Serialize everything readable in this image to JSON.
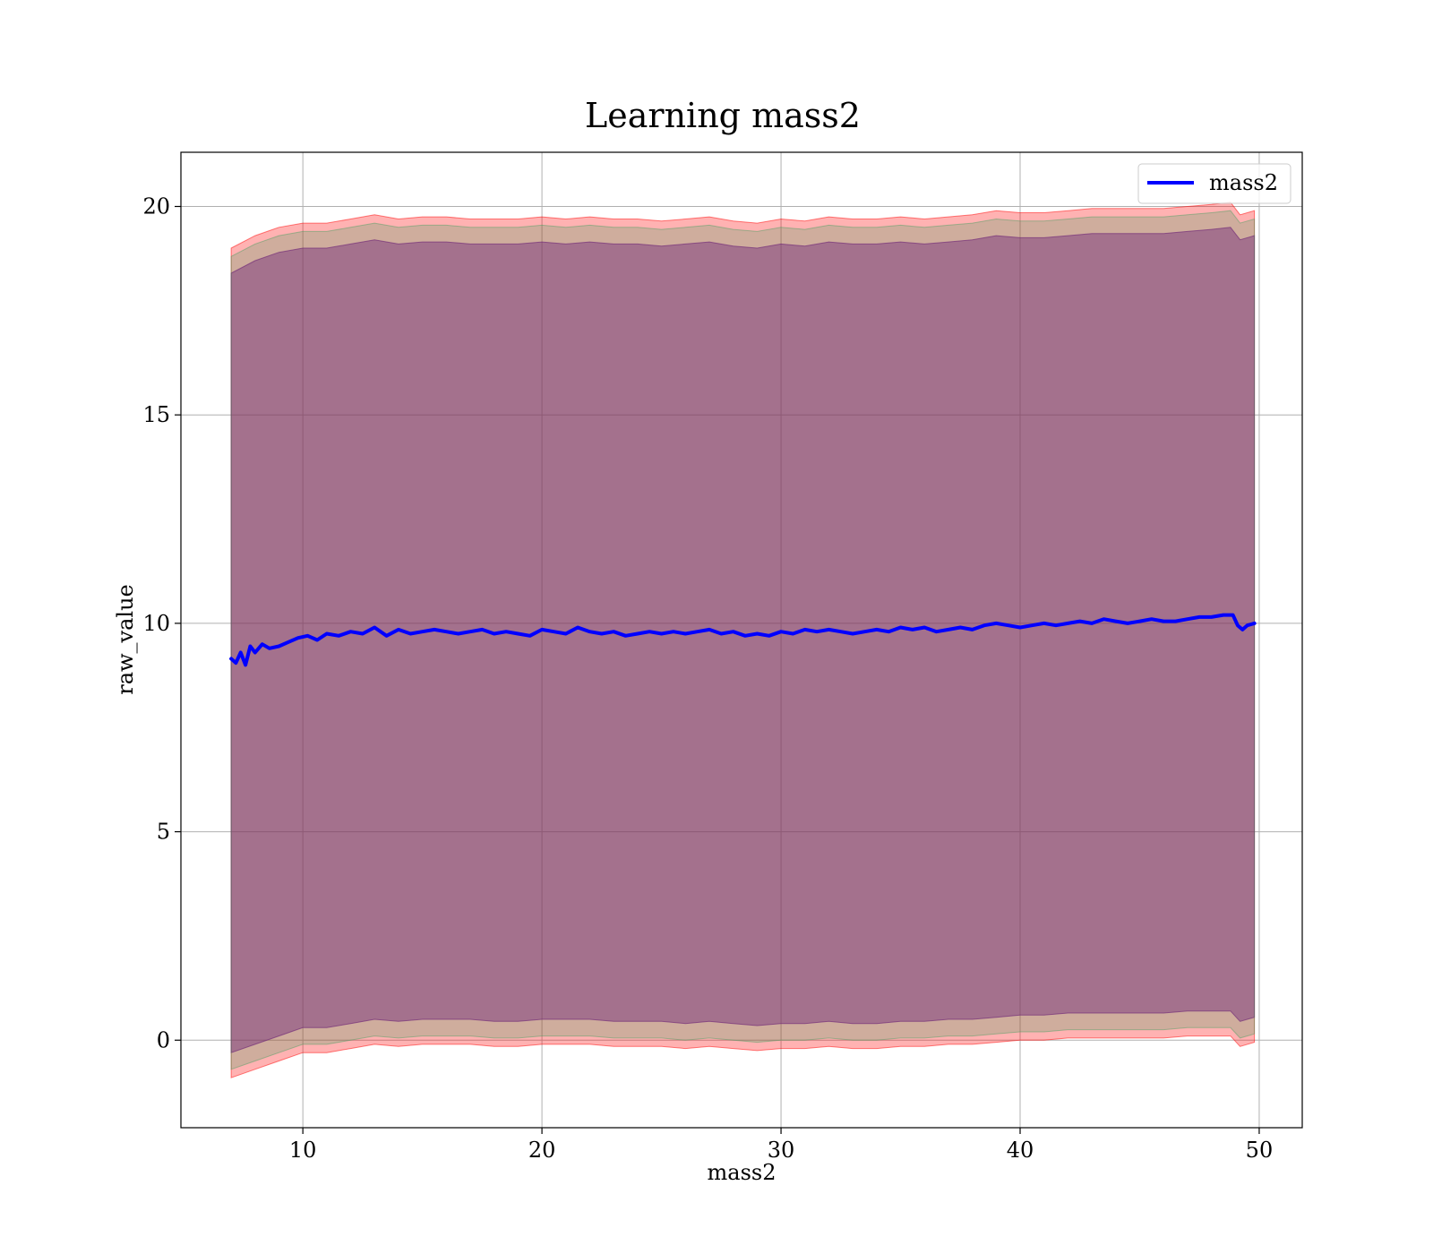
{
  "chart_data": {
    "type": "line",
    "title": "Learning mass2",
    "xlabel": "mass2",
    "ylabel": "raw_value",
    "xlim": [
      4.9,
      51.8
    ],
    "ylim": [
      -2.1,
      21.3
    ],
    "xticks": [
      10,
      20,
      30,
      40,
      50
    ],
    "yticks": [
      0,
      5,
      10,
      15,
      20
    ],
    "grid": true,
    "legend_position": "top-right",
    "series": [
      {
        "name": "mass2",
        "color": "#0000ff",
        "x": [
          7.0,
          7.2,
          7.4,
          7.6,
          7.8,
          8.0,
          8.3,
          8.6,
          9.0,
          9.4,
          9.8,
          10.2,
          10.6,
          11.0,
          11.5,
          12.0,
          12.5,
          13.0,
          13.5,
          14.0,
          14.5,
          15.0,
          15.5,
          16.0,
          16.5,
          17.0,
          17.5,
          18.0,
          18.5,
          19.0,
          19.5,
          20.0,
          20.5,
          21.0,
          21.5,
          22.0,
          22.5,
          23.0,
          23.5,
          24.0,
          24.5,
          25.0,
          25.5,
          26.0,
          26.5,
          27.0,
          27.5,
          28.0,
          28.5,
          29.0,
          29.5,
          30.0,
          30.5,
          31.0,
          31.5,
          32.0,
          32.5,
          33.0,
          33.5,
          34.0,
          34.5,
          35.0,
          35.5,
          36.0,
          36.5,
          37.0,
          37.5,
          38.0,
          38.5,
          39.0,
          39.5,
          40.0,
          40.5,
          41.0,
          41.5,
          42.0,
          42.5,
          43.0,
          43.5,
          44.0,
          44.5,
          45.0,
          45.5,
          46.0,
          46.5,
          47.0,
          47.5,
          48.0,
          48.5,
          48.9,
          49.1,
          49.3,
          49.5,
          49.8
        ],
        "y": [
          9.15,
          9.05,
          9.3,
          9.0,
          9.45,
          9.3,
          9.5,
          9.4,
          9.45,
          9.55,
          9.65,
          9.7,
          9.6,
          9.75,
          9.7,
          9.8,
          9.75,
          9.9,
          9.7,
          9.85,
          9.75,
          9.8,
          9.85,
          9.8,
          9.75,
          9.8,
          9.85,
          9.75,
          9.8,
          9.75,
          9.7,
          9.85,
          9.8,
          9.75,
          9.9,
          9.8,
          9.75,
          9.8,
          9.7,
          9.75,
          9.8,
          9.75,
          9.8,
          9.75,
          9.8,
          9.85,
          9.75,
          9.8,
          9.7,
          9.75,
          9.7,
          9.8,
          9.75,
          9.85,
          9.8,
          9.85,
          9.8,
          9.75,
          9.8,
          9.85,
          9.8,
          9.9,
          9.85,
          9.9,
          9.8,
          9.85,
          9.9,
          9.85,
          9.95,
          10.0,
          9.95,
          9.9,
          9.95,
          10.0,
          9.95,
          10.0,
          10.05,
          10.0,
          10.1,
          10.05,
          10.0,
          10.05,
          10.1,
          10.05,
          10.05,
          10.1,
          10.15,
          10.15,
          10.2,
          10.2,
          9.95,
          9.85,
          9.95,
          10.0
        ]
      }
    ],
    "bands": [
      {
        "color": "#ff0000",
        "opacity": 0.3,
        "x": [
          7.0,
          8.0,
          9.0,
          10.0,
          11.0,
          12.0,
          13.0,
          14.0,
          15.0,
          16.0,
          17.0,
          18.0,
          19.0,
          20.0,
          21.0,
          22.0,
          23.0,
          24.0,
          25.0,
          26.0,
          27.0,
          28.0,
          29.0,
          30.0,
          31.0,
          32.0,
          33.0,
          34.0,
          35.0,
          36.0,
          37.0,
          38.0,
          39.0,
          40.0,
          41.0,
          42.0,
          43.0,
          44.0,
          45.0,
          46.0,
          47.0,
          48.0,
          48.8,
          49.2,
          49.8
        ],
        "upper": [
          19.0,
          19.3,
          19.5,
          19.6,
          19.6,
          19.7,
          19.8,
          19.7,
          19.75,
          19.75,
          19.7,
          19.7,
          19.7,
          19.75,
          19.7,
          19.75,
          19.7,
          19.7,
          19.65,
          19.7,
          19.75,
          19.65,
          19.6,
          19.7,
          19.65,
          19.75,
          19.7,
          19.7,
          19.75,
          19.7,
          19.75,
          19.8,
          19.9,
          19.85,
          19.85,
          19.9,
          19.95,
          19.95,
          19.95,
          19.95,
          20.0,
          20.05,
          20.1,
          19.8,
          19.9
        ],
        "lower": [
          -0.9,
          -0.7,
          -0.5,
          -0.3,
          -0.3,
          -0.2,
          -0.1,
          -0.15,
          -0.1,
          -0.1,
          -0.1,
          -0.15,
          -0.15,
          -0.1,
          -0.1,
          -0.1,
          -0.15,
          -0.15,
          -0.15,
          -0.2,
          -0.15,
          -0.2,
          -0.25,
          -0.2,
          -0.2,
          -0.15,
          -0.2,
          -0.2,
          -0.15,
          -0.15,
          -0.1,
          -0.1,
          -0.05,
          0.0,
          0.0,
          0.05,
          0.05,
          0.05,
          0.05,
          0.05,
          0.1,
          0.1,
          0.1,
          -0.15,
          -0.05
        ]
      },
      {
        "color": "#800080",
        "opacity": 0.45,
        "x": [
          7.0,
          8.0,
          9.0,
          10.0,
          11.0,
          12.0,
          13.0,
          14.0,
          15.0,
          16.0,
          17.0,
          18.0,
          19.0,
          20.0,
          21.0,
          22.0,
          23.0,
          24.0,
          25.0,
          26.0,
          27.0,
          28.0,
          29.0,
          30.0,
          31.0,
          32.0,
          33.0,
          34.0,
          35.0,
          36.0,
          37.0,
          38.0,
          39.0,
          40.0,
          41.0,
          42.0,
          43.0,
          44.0,
          45.0,
          46.0,
          47.0,
          48.0,
          48.8,
          49.2,
          49.8
        ],
        "upper": [
          18.4,
          18.7,
          18.9,
          19.0,
          19.0,
          19.1,
          19.2,
          19.1,
          19.15,
          19.15,
          19.1,
          19.1,
          19.1,
          19.15,
          19.1,
          19.15,
          19.1,
          19.1,
          19.05,
          19.1,
          19.15,
          19.05,
          19.0,
          19.1,
          19.05,
          19.15,
          19.1,
          19.1,
          19.15,
          19.1,
          19.15,
          19.2,
          19.3,
          19.25,
          19.25,
          19.3,
          19.35,
          19.35,
          19.35,
          19.35,
          19.4,
          19.45,
          19.5,
          19.2,
          19.3
        ],
        "lower": [
          -0.3,
          -0.1,
          0.1,
          0.3,
          0.3,
          0.4,
          0.5,
          0.45,
          0.5,
          0.5,
          0.5,
          0.45,
          0.45,
          0.5,
          0.5,
          0.5,
          0.45,
          0.45,
          0.45,
          0.4,
          0.45,
          0.4,
          0.35,
          0.4,
          0.4,
          0.45,
          0.4,
          0.4,
          0.45,
          0.45,
          0.5,
          0.5,
          0.55,
          0.6,
          0.6,
          0.65,
          0.65,
          0.65,
          0.65,
          0.65,
          0.7,
          0.7,
          0.7,
          0.45,
          0.55
        ]
      },
      {
        "color": "#40a060",
        "opacity": 0.25,
        "x": [
          7.0,
          8.0,
          9.0,
          10.0,
          11.0,
          12.0,
          13.0,
          14.0,
          15.0,
          16.0,
          17.0,
          18.0,
          19.0,
          20.0,
          21.0,
          22.0,
          23.0,
          24.0,
          25.0,
          26.0,
          27.0,
          28.0,
          29.0,
          30.0,
          31.0,
          32.0,
          33.0,
          34.0,
          35.0,
          36.0,
          37.0,
          38.0,
          39.0,
          40.0,
          41.0,
          42.0,
          43.0,
          44.0,
          45.0,
          46.0,
          47.0,
          48.0,
          48.8,
          49.2,
          49.8
        ],
        "upper": [
          18.8,
          19.1,
          19.3,
          19.4,
          19.4,
          19.5,
          19.6,
          19.5,
          19.55,
          19.55,
          19.5,
          19.5,
          19.5,
          19.55,
          19.5,
          19.55,
          19.5,
          19.5,
          19.45,
          19.5,
          19.55,
          19.45,
          19.4,
          19.5,
          19.45,
          19.55,
          19.5,
          19.5,
          19.55,
          19.5,
          19.55,
          19.6,
          19.7,
          19.65,
          19.65,
          19.7,
          19.75,
          19.75,
          19.75,
          19.75,
          19.8,
          19.85,
          19.9,
          19.6,
          19.7
        ],
        "lower": [
          -0.7,
          -0.5,
          -0.3,
          -0.1,
          -0.1,
          0.0,
          0.1,
          0.05,
          0.1,
          0.1,
          0.1,
          0.05,
          0.05,
          0.1,
          0.1,
          0.1,
          0.05,
          0.05,
          0.05,
          0.0,
          0.05,
          0.0,
          -0.05,
          0.0,
          0.0,
          0.05,
          0.0,
          0.0,
          0.05,
          0.05,
          0.1,
          0.1,
          0.15,
          0.2,
          0.2,
          0.25,
          0.25,
          0.25,
          0.25,
          0.25,
          0.3,
          0.3,
          0.3,
          0.05,
          0.15
        ]
      }
    ]
  }
}
